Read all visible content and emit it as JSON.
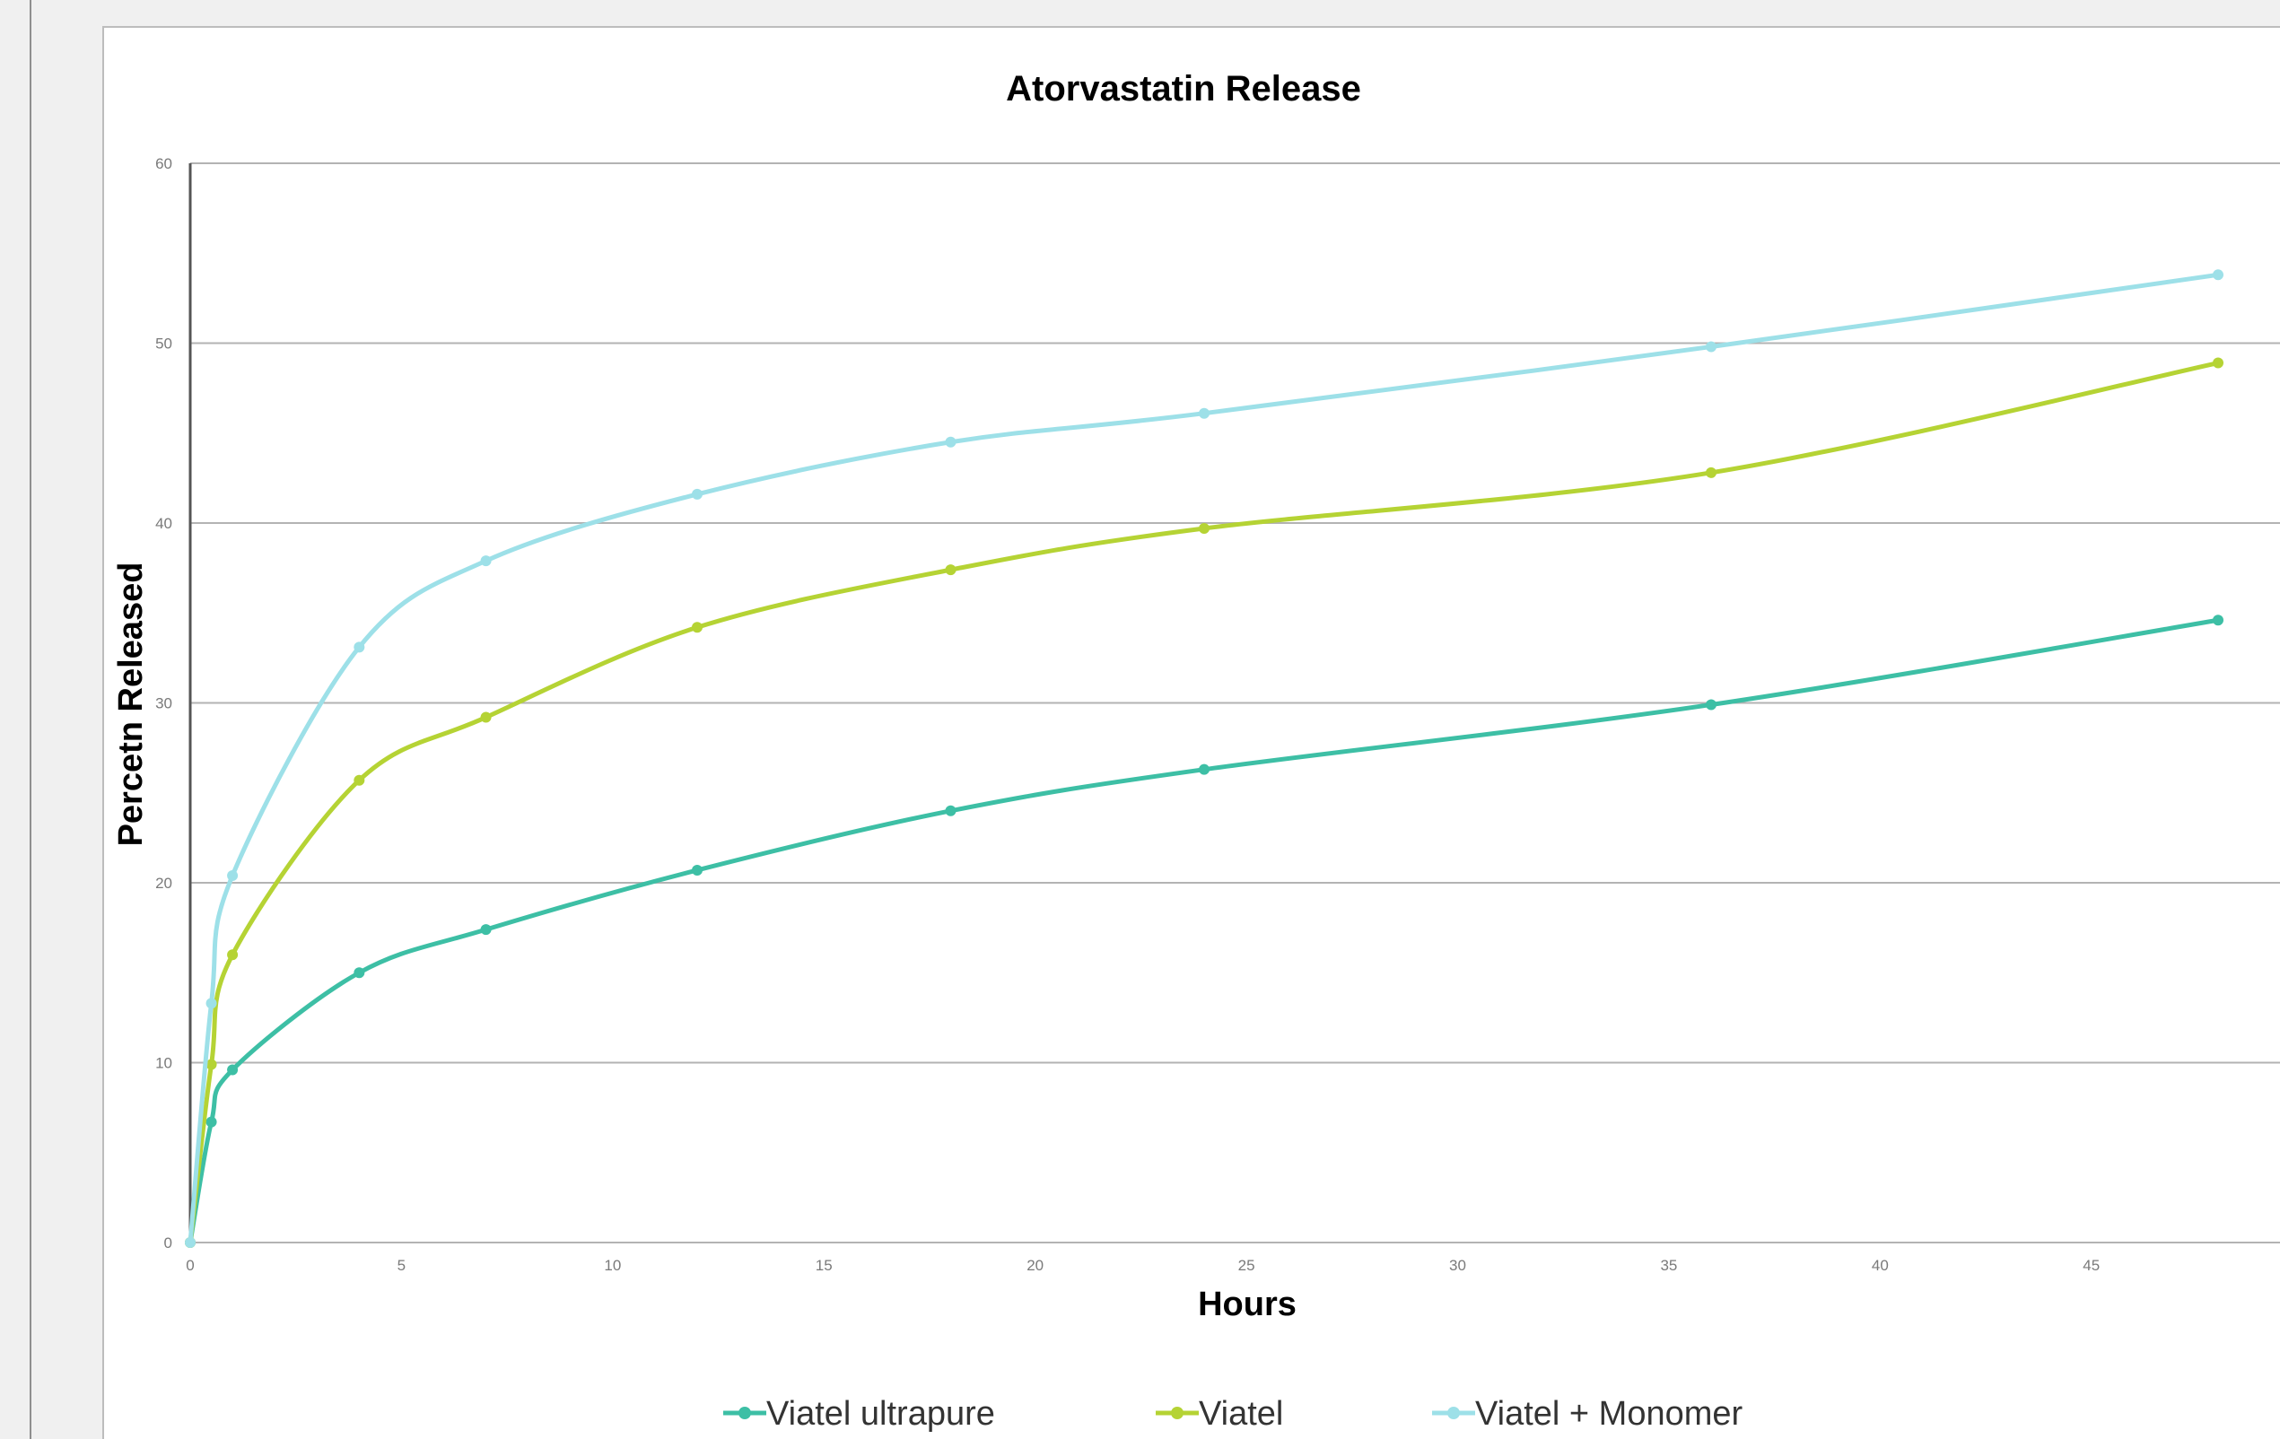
{
  "chart_data": {
    "type": "line",
    "title": "Atorvastatin Release",
    "xlabel": "Hours",
    "ylabel": "Percetn Released",
    "xlim": [
      0,
      50
    ],
    "ylim": [
      0,
      60
    ],
    "x_ticks": [
      0,
      5,
      10,
      15,
      20,
      25,
      30,
      35,
      40,
      45
    ],
    "y_ticks": [
      0,
      10,
      20,
      30,
      40,
      50,
      60
    ],
    "grid": "horizontal",
    "legend_position": "bottom",
    "smooth": true,
    "series": [
      {
        "name": "Viatel ultrapure",
        "color": "#3dbfa5",
        "x": [
          0,
          0.5,
          1,
          4,
          7,
          12,
          18,
          24,
          36,
          48
        ],
        "y": [
          0,
          6.7,
          9.6,
          15.0,
          17.4,
          20.7,
          24.0,
          26.3,
          29.9,
          34.6
        ]
      },
      {
        "name": "Viatel",
        "color": "#b5d334",
        "x": [
          0,
          0.5,
          1,
          4,
          7,
          12,
          18,
          24,
          36,
          48
        ],
        "y": [
          0,
          9.9,
          16.0,
          25.7,
          29.2,
          34.2,
          37.4,
          39.7,
          42.8,
          48.9
        ]
      },
      {
        "name": "Viatel + Monomer",
        "color": "#9de0e8",
        "x": [
          0,
          0.5,
          1,
          4,
          7,
          12,
          18,
          24,
          36,
          48
        ],
        "y": [
          0,
          13.3,
          20.4,
          33.1,
          37.9,
          41.6,
          44.5,
          46.1,
          49.8,
          53.8
        ]
      }
    ]
  },
  "colors": {
    "gridline": "#b3b3b3",
    "axis": "#555555",
    "background": "#ffffff"
  }
}
